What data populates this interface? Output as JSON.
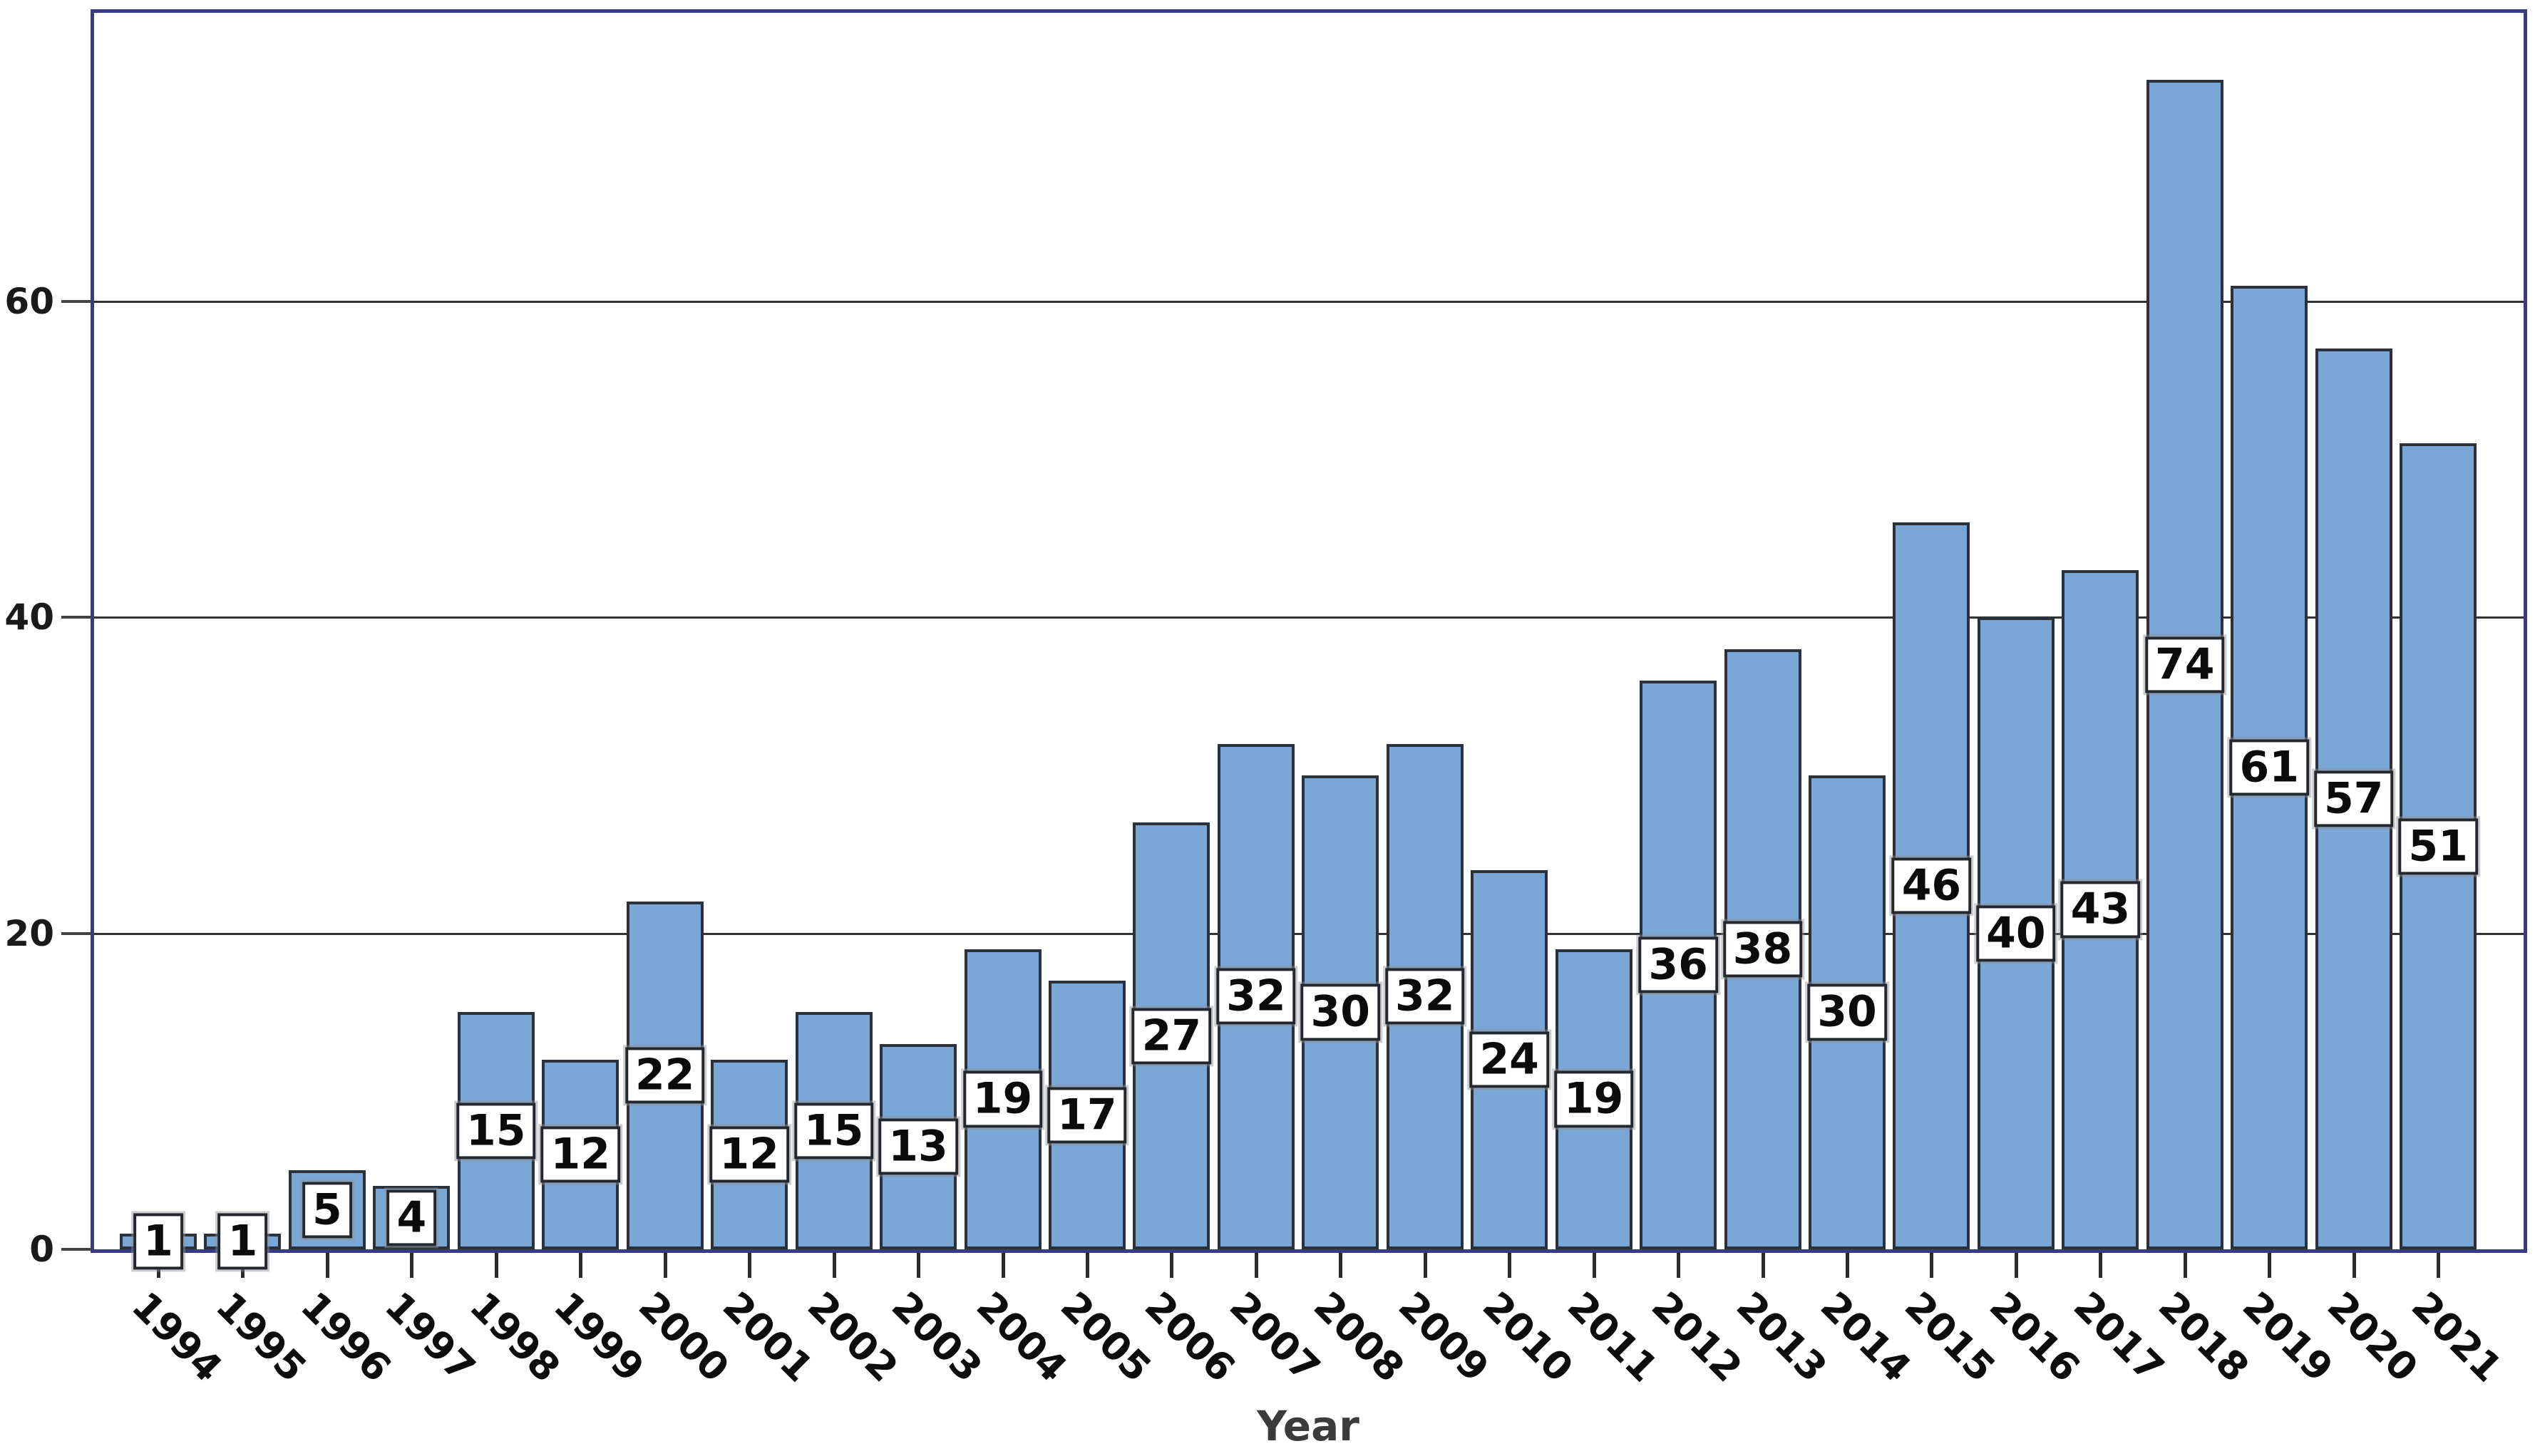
{
  "chart_data": {
    "type": "bar",
    "title": "",
    "xlabel": "Year",
    "ylabel": "",
    "categories": [
      "1994",
      "1995",
      "1996",
      "1997",
      "1998",
      "1999",
      "2000",
      "2001",
      "2002",
      "2003",
      "2004",
      "2005",
      "2006",
      "2007",
      "2008",
      "2009",
      "2010",
      "2011",
      "2012",
      "2013",
      "2014",
      "2015",
      "2016",
      "2017",
      "2018",
      "2019",
      "2020",
      "2021"
    ],
    "values": [
      1,
      1,
      5,
      4,
      15,
      12,
      22,
      12,
      15,
      13,
      19,
      17,
      27,
      32,
      30,
      32,
      24,
      19,
      36,
      38,
      30,
      46,
      40,
      43,
      74,
      61,
      57,
      51
    ],
    "yticks": [
      0,
      20,
      40,
      60
    ],
    "ylim": [
      0,
      79
    ],
    "grid": "horizontal",
    "legend_position": "none",
    "value_labels": "white boxes centered on each bar",
    "colors": {
      "bar_fill": "#7aa6d6",
      "bar_border": "#2a313b",
      "frame": "#383b82",
      "gridline": "#333333",
      "value_box_fill": "#ffffff",
      "value_box_border": "#23272e",
      "tick_text": "#1a1a1a",
      "axis_title_text": "#3b3b3b"
    }
  }
}
